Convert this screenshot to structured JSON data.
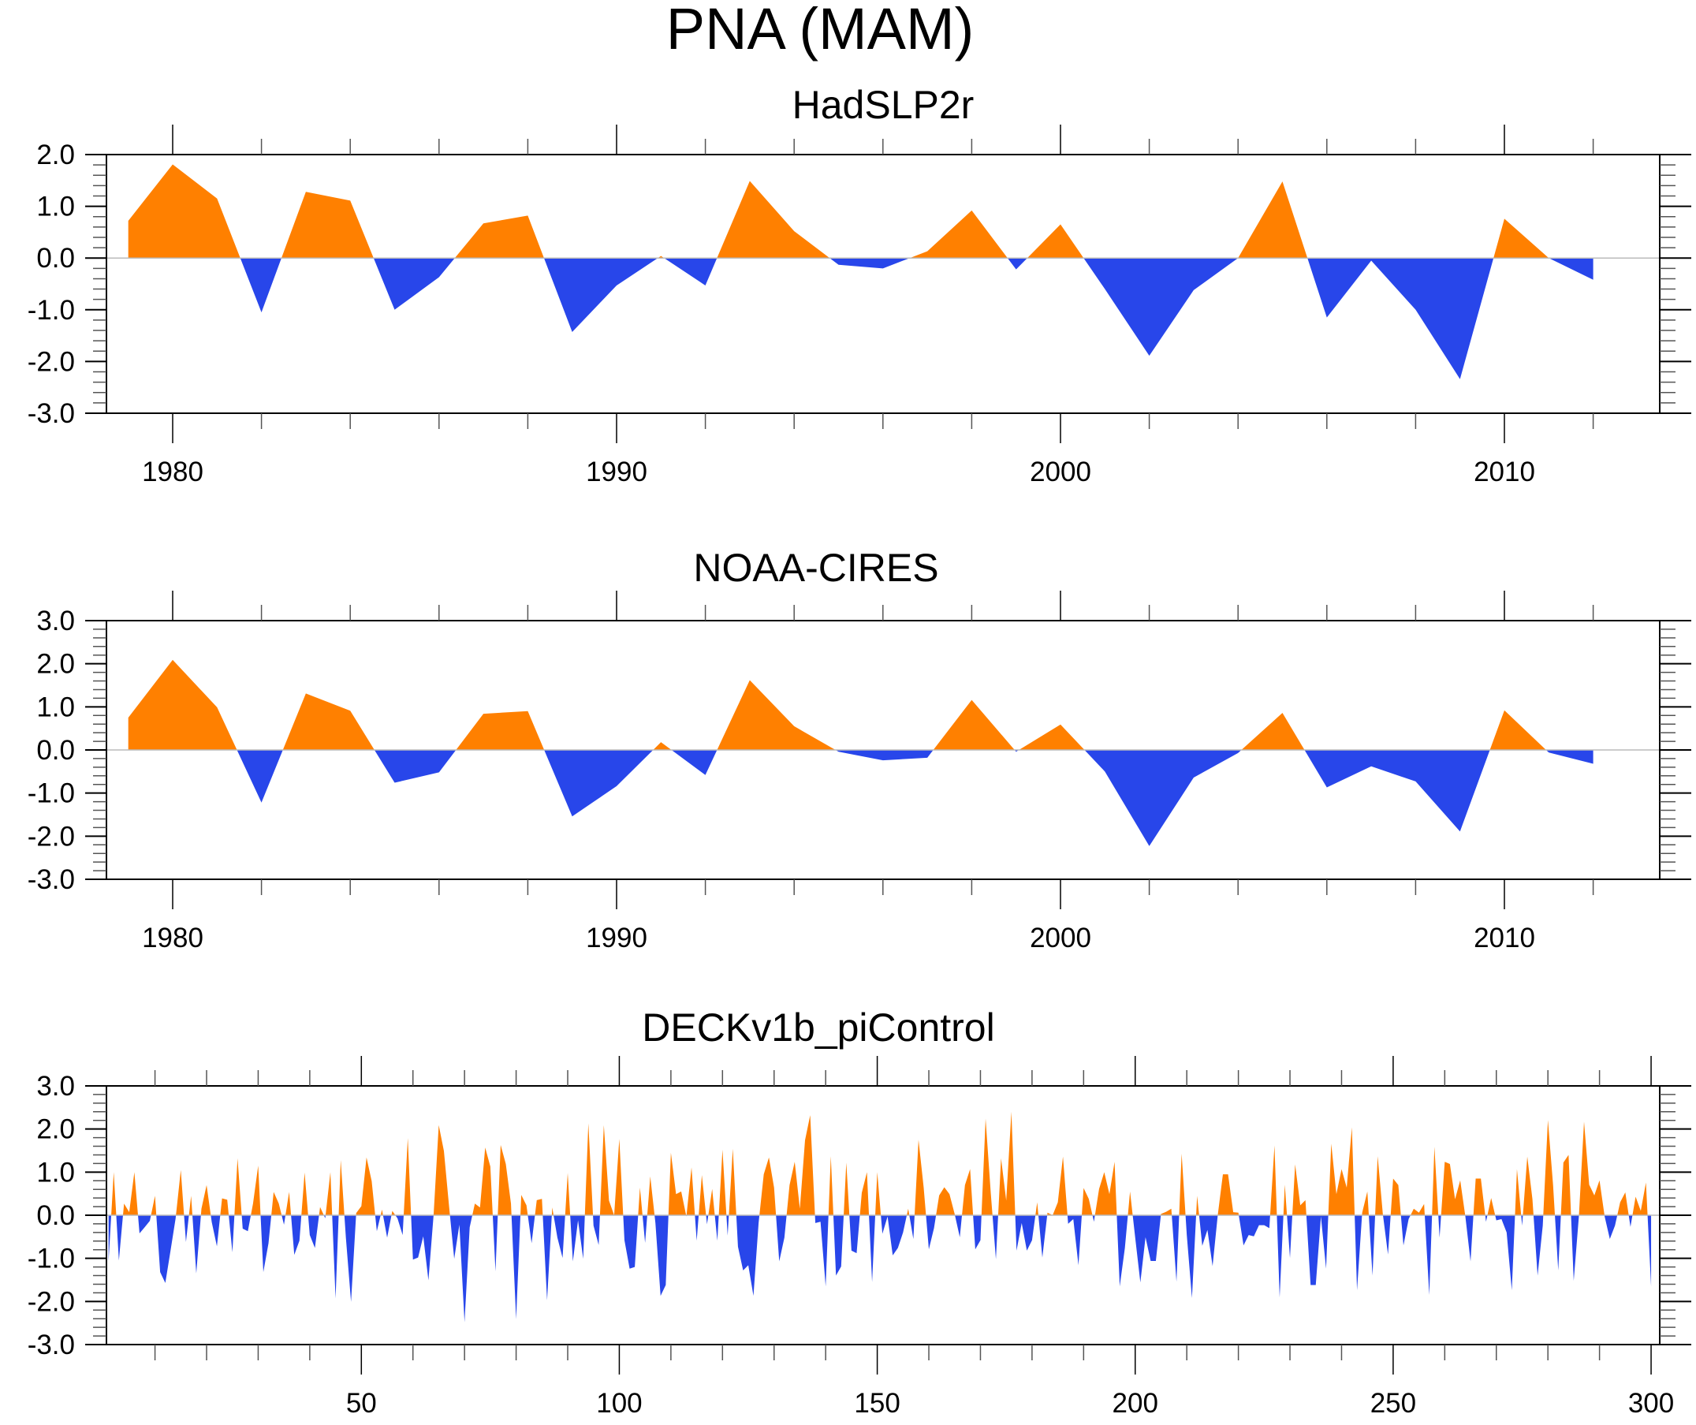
{
  "figure": {
    "title": "PNA (MAM)"
  },
  "colors": {
    "positive": "#ff8000",
    "negative": "#2846ea",
    "frame": "#000000",
    "zero_line": "#bbbbbb"
  },
  "chart_data": [
    {
      "type": "area",
      "title": "HadSLP2r",
      "xlabel": "",
      "ylabel": "",
      "xlim": [
        1978.3,
        2013.7
      ],
      "ylim": [
        -3.0,
        2.0
      ],
      "yticks": [
        -3.0,
        -2.0,
        -1.0,
        0.0,
        1.0,
        2.0
      ],
      "ytick_labels": [
        "-3.0",
        "-2.0",
        "-1.0",
        "0.0",
        "1.0",
        "2.0"
      ],
      "yminor_step": 0.2,
      "xticks": [
        1980,
        1990,
        2000,
        2010
      ],
      "xtick_labels": [
        "1980",
        "1990",
        "2000",
        "2010"
      ],
      "xminor_step": 2,
      "grid": false,
      "fill_above_zero": "positive",
      "fill_below_zero": "negative",
      "x": [
        1979,
        1980,
        1981,
        1982,
        1983,
        1984,
        1985,
        1986,
        1987,
        1988,
        1989,
        1990,
        1991,
        1992,
        1993,
        1994,
        1995,
        1996,
        1997,
        1998,
        1999,
        2000,
        2001,
        2002,
        2003,
        2004,
        2005,
        2006,
        2007,
        2008,
        2009,
        2010,
        2011,
        2012
      ],
      "values": [
        0.72,
        1.81,
        1.15,
        -1.05,
        1.28,
        1.11,
        -1.0,
        -0.37,
        0.67,
        0.82,
        -1.43,
        -0.53,
        0.04,
        -0.53,
        1.49,
        0.52,
        -0.13,
        -0.2,
        0.13,
        0.92,
        -0.22,
        0.65,
        -0.6,
        -1.89,
        -0.62,
        0.0,
        1.48,
        -1.15,
        -0.05,
        -1.0,
        -2.34,
        0.76,
        0.0,
        -0.42
      ]
    },
    {
      "type": "area",
      "title": "NOAA-CIRES",
      "xlabel": "",
      "ylabel": "",
      "xlim": [
        1978.3,
        2013.7
      ],
      "ylim": [
        -3.0,
        3.0
      ],
      "yticks": [
        -3.0,
        -2.0,
        -1.0,
        0.0,
        1.0,
        2.0,
        3.0
      ],
      "ytick_labels": [
        "-3.0",
        "-2.0",
        "-1.0",
        "0.0",
        "1.0",
        "2.0",
        "3.0"
      ],
      "yminor_step": 0.2,
      "xticks": [
        1980,
        1990,
        2000,
        2010
      ],
      "xtick_labels": [
        "1980",
        "1990",
        "2000",
        "2010"
      ],
      "xminor_step": 2,
      "grid": false,
      "fill_above_zero": "positive",
      "fill_below_zero": "negative",
      "x": [
        1979,
        1980,
        1981,
        1982,
        1983,
        1984,
        1985,
        1986,
        1987,
        1988,
        1989,
        1990,
        1991,
        1992,
        1993,
        1994,
        1995,
        1996,
        1997,
        1998,
        1999,
        2000,
        2001,
        2002,
        2003,
        2004,
        2005,
        2006,
        2007,
        2008,
        2009,
        2010,
        2011,
        2012
      ],
      "values": [
        0.75,
        2.09,
        0.99,
        -1.22,
        1.31,
        0.91,
        -0.76,
        -0.52,
        0.84,
        0.9,
        -1.54,
        -0.84,
        0.18,
        -0.58,
        1.62,
        0.55,
        -0.04,
        -0.24,
        -0.18,
        1.16,
        -0.04,
        0.59,
        -0.5,
        -2.23,
        -0.64,
        -0.07,
        0.86,
        -0.87,
        -0.38,
        -0.73,
        -1.89,
        0.92,
        -0.06,
        -0.32
      ]
    },
    {
      "type": "area",
      "title": "DECKv1b_piControl",
      "xlabel": "",
      "ylabel": "",
      "xlim": [
        0.5,
        301.5
      ],
      "ylim": [
        -3.0,
        3.0
      ],
      "yticks": [
        -3.0,
        -2.0,
        -1.0,
        0.0,
        1.0,
        2.0,
        3.0
      ],
      "ytick_labels": [
        "-3.0",
        "-2.0",
        "-1.0",
        "0.0",
        "1.0",
        "2.0",
        "3.0"
      ],
      "yminor_step": 0.2,
      "xticks": [
        50,
        100,
        150,
        200,
        250,
        300
      ],
      "xtick_labels": [
        "50",
        "100",
        "150",
        "200",
        "250",
        "300"
      ],
      "xminor_step": 10,
      "grid": false,
      "fill_above_zero": "positive",
      "fill_below_zero": "negative",
      "x_start": 1,
      "x_step": 1,
      "values": [
        -1.07,
        1.0,
        -1.05,
        0.27,
        0.07,
        1.0,
        -0.42,
        -0.28,
        -0.13,
        0.45,
        -1.32,
        -1.57,
        -0.83,
        -0.07,
        1.05,
        -0.62,
        0.45,
        -1.35,
        0.15,
        0.7,
        -0.16,
        -0.72,
        0.39,
        0.36,
        -0.86,
        1.32,
        -0.31,
        -0.37,
        0.27,
        1.15,
        -1.32,
        -0.65,
        0.54,
        0.27,
        -0.22,
        0.54,
        -0.92,
        -0.59,
        0.99,
        -0.46,
        -0.76,
        0.19,
        -0.07,
        1.0,
        -1.93,
        1.28,
        -0.52,
        -2.01,
        0.05,
        0.21,
        1.34,
        0.79,
        -0.37,
        0.13,
        -0.52,
        0.1,
        -0.07,
        -0.46,
        1.79,
        -1.03,
        -0.98,
        -0.49,
        -1.51,
        0.0,
        2.09,
        1.49,
        0.21,
        -1.01,
        -0.22,
        -2.48,
        -0.28,
        0.27,
        0.18,
        1.57,
        1.13,
        -1.3,
        1.63,
        1.19,
        0.27,
        -2.41,
        0.47,
        0.23,
        -0.65,
        0.35,
        0.38,
        -1.97,
        0.18,
        -0.52,
        -0.99,
        0.98,
        -1.07,
        -0.12,
        -1.01,
        2.13,
        -0.24,
        -0.69,
        2.09,
        0.34,
        0.0,
        1.77,
        -0.58,
        -1.24,
        -1.2,
        0.64,
        -0.64,
        0.9,
        -0.18,
        -1.87,
        -1.62,
        1.45,
        0.49,
        0.55,
        -0.03,
        1.11,
        -0.59,
        0.93,
        -0.21,
        0.61,
        -0.59,
        1.52,
        -0.47,
        1.54,
        -0.73,
        -1.28,
        -1.16,
        -1.87,
        -0.18,
        0.95,
        1.34,
        0.64,
        -1.07,
        -0.52,
        0.7,
        1.24,
        0.15,
        1.74,
        2.32,
        -0.18,
        -0.15,
        -1.65,
        1.37,
        -1.4,
        -1.19,
        1.22,
        -0.82,
        -0.88,
        0.52,
        1.0,
        -1.55,
        1.0,
        -0.43,
        -0.03,
        -0.93,
        -0.76,
        -0.4,
        0.15,
        -0.55,
        1.75,
        0.64,
        -0.79,
        -0.3,
        0.46,
        0.65,
        0.49,
        0.03,
        -0.51,
        0.7,
        1.07,
        -0.79,
        -0.58,
        2.24,
        0.52,
        -1.02,
        1.32,
        0.34,
        2.4,
        -0.82,
        -0.18,
        -0.82,
        -0.58,
        0.3,
        -0.98,
        0.06,
        0.0,
        0.3,
        1.36,
        -0.2,
        -0.09,
        -1.16,
        0.63,
        0.38,
        -0.15,
        0.61,
        1.0,
        0.49,
        1.24,
        -1.65,
        -0.76,
        0.55,
        -0.52,
        -1.56,
        -0.51,
        -1.06,
        -1.06,
        0.03,
        0.08,
        0.15,
        -1.54,
        1.43,
        -0.46,
        -1.92,
        0.45,
        -0.71,
        -0.34,
        -1.18,
        0.0,
        0.95,
        0.95,
        0.07,
        0.06,
        -0.7,
        -0.46,
        -0.49,
        -0.23,
        -0.23,
        -0.3,
        1.62,
        -1.91,
        0.71,
        -0.99,
        1.18,
        0.23,
        0.35,
        -1.62,
        -1.62,
        -0.03,
        -1.24,
        1.66,
        0.49,
        1.07,
        0.64,
        2.04,
        -1.74,
        0.06,
        0.55,
        -1.4,
        1.37,
        0.03,
        -0.91,
        0.85,
        0.7,
        -0.7,
        -0.09,
        0.15,
        0.06,
        0.26,
        -1.85,
        1.59,
        -0.52,
        1.24,
        1.19,
        0.37,
        0.81,
        -0.03,
        -1.07,
        0.85,
        0.85,
        -0.15,
        0.4,
        -0.12,
        -0.09,
        -0.4,
        -1.74,
        1.07,
        -0.24,
        1.36,
        0.37,
        -1.4,
        -0.24,
        2.21,
        0.7,
        -1.28,
        1.22,
        1.4,
        -1.52,
        -0.03,
        2.17,
        0.71,
        0.46,
        0.81,
        -0.03,
        -0.55,
        -0.24,
        0.3,
        0.53,
        -0.27,
        0.43,
        0.1,
        0.76,
        -1.65
      ]
    }
  ]
}
